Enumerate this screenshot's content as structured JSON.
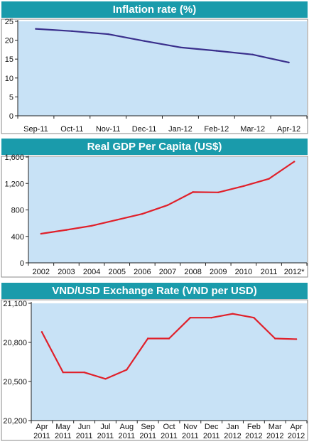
{
  "chart_data": [
    {
      "type": "line",
      "title": "Inflation rate (%)",
      "categories": [
        "Sep-11",
        "Oct-11",
        "Nov-11",
        "Dec-11",
        "Jan-12",
        "Feb-12",
        "Mar-12",
        "Apr-12"
      ],
      "values": [
        23.0,
        22.4,
        21.6,
        19.8,
        18.1,
        17.2,
        16.2,
        14.1
      ],
      "ylim": [
        0,
        25
      ],
      "yticks": [
        "0",
        "5",
        "10",
        "15",
        "20",
        "25"
      ],
      "grid": false,
      "colors": {
        "line": "#3a2f8c",
        "plot_bg": "#c8e2f6"
      }
    },
    {
      "type": "line",
      "title": "Real GDP Per Capita (US$)",
      "categories": [
        "2002",
        "2003",
        "2004",
        "2005",
        "2006",
        "2007",
        "2008",
        "2009",
        "2010",
        "2011",
        "2012*"
      ],
      "values": [
        440,
        498,
        560,
        650,
        740,
        872,
        1070,
        1065,
        1160,
        1270,
        1530
      ],
      "ylim": [
        0,
        1600
      ],
      "yticks": [
        "0",
        "400",
        "800",
        "1,200",
        "1,600"
      ],
      "grid": false,
      "colors": {
        "line": "#e0202a",
        "plot_bg": "#c8e2f6"
      }
    },
    {
      "type": "line",
      "title": "VND/USD Exchange Rate (VND per USD)",
      "categories": [
        "Apr 2011",
        "May 2011",
        "Jun 2011",
        "Jul 2011",
        "Aug 2011",
        "Sep 2011",
        "Oct 2011",
        "Nov 2011",
        "Dec 2011",
        "Jan 2012",
        "Feb 2012",
        "Mar 2012",
        "Apr 2012"
      ],
      "values": [
        20880,
        20570,
        20570,
        20520,
        20590,
        20830,
        20830,
        20990,
        20990,
        21020,
        20990,
        20830,
        20825
      ],
      "ylim": [
        20200,
        21100
      ],
      "yticks": [
        "20,200",
        "20,500",
        "20,800",
        "21,100"
      ],
      "grid": false,
      "colors": {
        "line": "#e0202a",
        "plot_bg": "#c8e2f6"
      }
    }
  ]
}
